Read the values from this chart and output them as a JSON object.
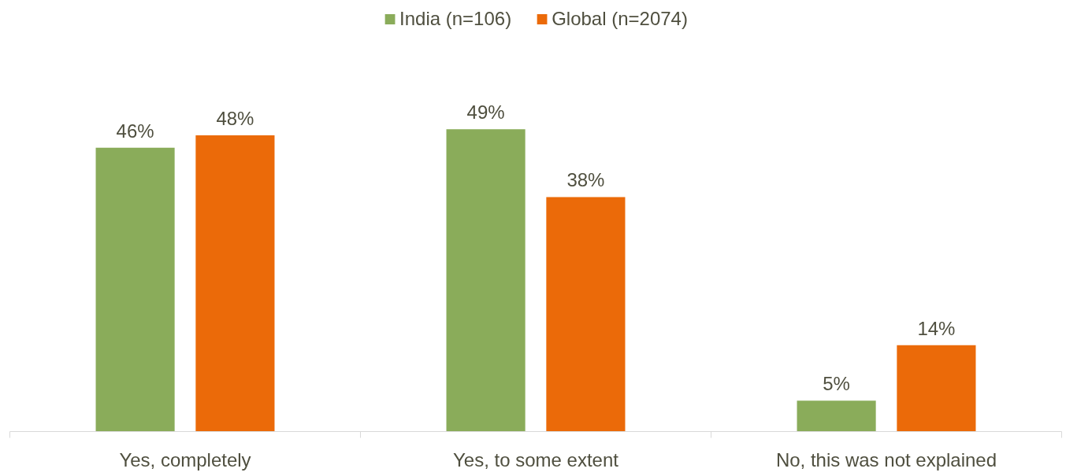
{
  "chart_data": {
    "type": "bar",
    "categories": [
      "Yes, completely",
      "Yes, to some extent",
      "No, this was not explained"
    ],
    "series": [
      {
        "name": "India (n=106)",
        "color": "#8aac5a",
        "values": [
          46,
          49,
          5
        ],
        "value_labels": [
          "46%",
          "49%",
          "5%"
        ]
      },
      {
        "name": "Global (n=2074)",
        "color": "#eb6a09",
        "values": [
          48,
          38,
          14
        ],
        "value_labels": [
          "48%",
          "38%",
          "14%"
        ]
      }
    ],
    "legend": "top",
    "grid": false
  }
}
